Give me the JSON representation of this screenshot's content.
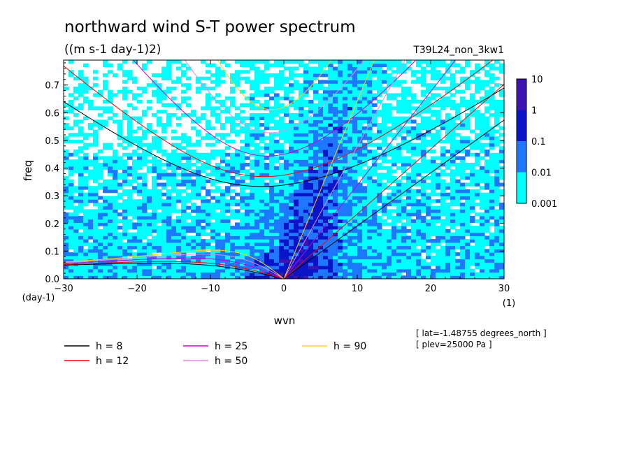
{
  "chart_data": {
    "type": "heatmap",
    "title": "northward wind S-T power spectrum",
    "subtitle": "((m s-1 day-1)2)",
    "dataset": "T39L24_non_3kw1",
    "xlabel": "wvn",
    "x_unit": "(1)",
    "ylabel": "freq",
    "y_unit": "(day-1)",
    "xlim": [
      -30,
      30
    ],
    "ylim": [
      0,
      0.79
    ],
    "x_ticks": [
      -30,
      -20,
      -10,
      0,
      10,
      20,
      30
    ],
    "x_tick_labels": [
      "-30",
      "-20",
      "-10",
      "0",
      "10",
      "20",
      "30"
    ],
    "y_ticks": [
      0,
      0.1,
      0.2,
      0.3,
      0.4,
      0.5,
      0.6,
      0.7
    ],
    "y_tick_labels": [
      "0.0",
      "0.1",
      "0.2",
      "0.3",
      "0.4",
      "0.5",
      "0.6",
      "0.7"
    ],
    "colorbar": {
      "levels": [
        0.001,
        0.01,
        0.1,
        1,
        10
      ],
      "labels": [
        "0.001",
        "0.01",
        "0.1",
        "1",
        "10"
      ],
      "colors": [
        "#00ffff",
        "#1e78ff",
        "#0a14c8",
        "#3c14b4"
      ]
    },
    "dispersion_curves": [
      {
        "label": "h =  8",
        "equiv_depth_m": 8,
        "color": "#000000"
      },
      {
        "label": "h = 12",
        "equiv_depth_m": 12,
        "color": "#ff0000"
      },
      {
        "label": "h = 25",
        "equiv_depth_m": 25,
        "color": "#cc00cc"
      },
      {
        "label": "h = 50",
        "equiv_depth_m": 50,
        "color": "#e08ce0"
      },
      {
        "label": "h = 90",
        "equiv_depth_m": 90,
        "color": "#ffd200"
      }
    ],
    "info_lines": [
      "[ lat=-1.48755 degrees_north ]",
      "[ plev=25000 Pa ]"
    ]
  }
}
